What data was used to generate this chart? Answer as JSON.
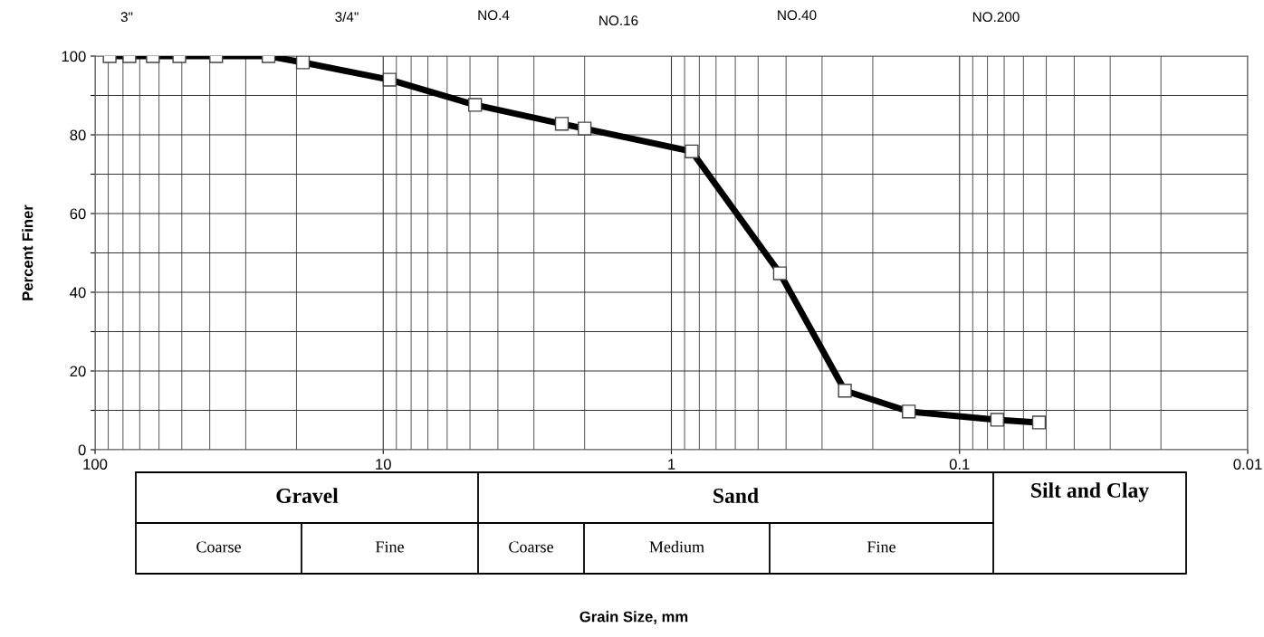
{
  "chart_data": {
    "type": "line",
    "ylabel": "Percent Finer",
    "x": [
      89,
      76,
      63,
      51,
      38,
      25,
      19,
      9.5,
      4.8,
      2.4,
      2.0,
      0.85,
      0.42,
      0.25,
      0.15,
      0.074,
      0.053
    ],
    "series": [
      {
        "color": "#000000",
        "values": [
          100,
          100,
          100,
          100,
          100,
          100,
          98.4,
          94,
          87.6,
          82.8,
          81.6,
          75.8,
          44.8,
          15,
          9.7,
          7.6,
          6.9
        ]
      }
    ],
    "log": "x",
    "xlim": [
      100,
      0.01
    ],
    "xticks": [
      100,
      10,
      1,
      0.1,
      0.01
    ],
    "ylim": [
      0,
      100
    ],
    "yticks": [
      0,
      {
        "value": 10,
        "label": null
      },
      20,
      {
        "value": 30,
        "label": null
      },
      40,
      {
        "value": 50,
        "label": null
      },
      60,
      {
        "value": 70,
        "label": null
      },
      80,
      {
        "value": 90,
        "label": null
      },
      100
    ],
    "grid": true,
    "marker": "square",
    "line_style": "solid",
    "annotations": [
      "3\"",
      "3/4\"",
      "NO.4",
      "NO.16",
      "NO.40",
      "NO.200",
      "Gravel",
      "Sand",
      "Silt and Clay",
      "Coarse",
      "Fine",
      "Coarse",
      "Medium",
      "Fine",
      "Grain Size, mm"
    ]
  }
}
